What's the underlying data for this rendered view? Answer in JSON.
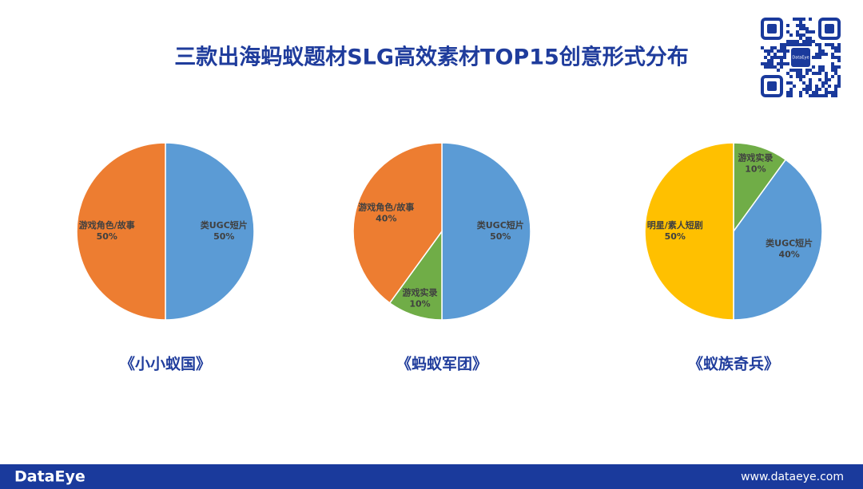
{
  "title": "三款出海蚂蚁题材SLG高效素材TOP15创意形式分布",
  "qr": {
    "label": "DataEye"
  },
  "footer": {
    "brand": "DataEye",
    "url": "www.dataeye.com"
  },
  "chart_data": [
    {
      "type": "pie",
      "title": "《小小蚁国》",
      "categories": [
        "类UGC短片",
        "游戏角色/故事"
      ],
      "values": [
        50,
        50
      ],
      "value_labels": [
        "50%",
        "50%"
      ],
      "colors": [
        "#5b9bd5",
        "#ed7d31"
      ]
    },
    {
      "type": "pie",
      "title": "《蚂蚁军团》",
      "categories": [
        "类UGC短片",
        "游戏实录",
        "游戏角色/故事"
      ],
      "values": [
        50,
        10,
        40
      ],
      "value_labels": [
        "50%",
        "10%",
        "40%"
      ],
      "colors": [
        "#5b9bd5",
        "#70ad47",
        "#ed7d31"
      ]
    },
    {
      "type": "pie",
      "title": "《蚁族奇兵》",
      "categories": [
        "游戏实录",
        "类UGC短片",
        "明星/素人短剧"
      ],
      "values": [
        10,
        40,
        50
      ],
      "value_labels": [
        "10%",
        "40%",
        "50%"
      ],
      "colors": [
        "#70ad47",
        "#5b9bd5",
        "#ffc000"
      ]
    }
  ]
}
